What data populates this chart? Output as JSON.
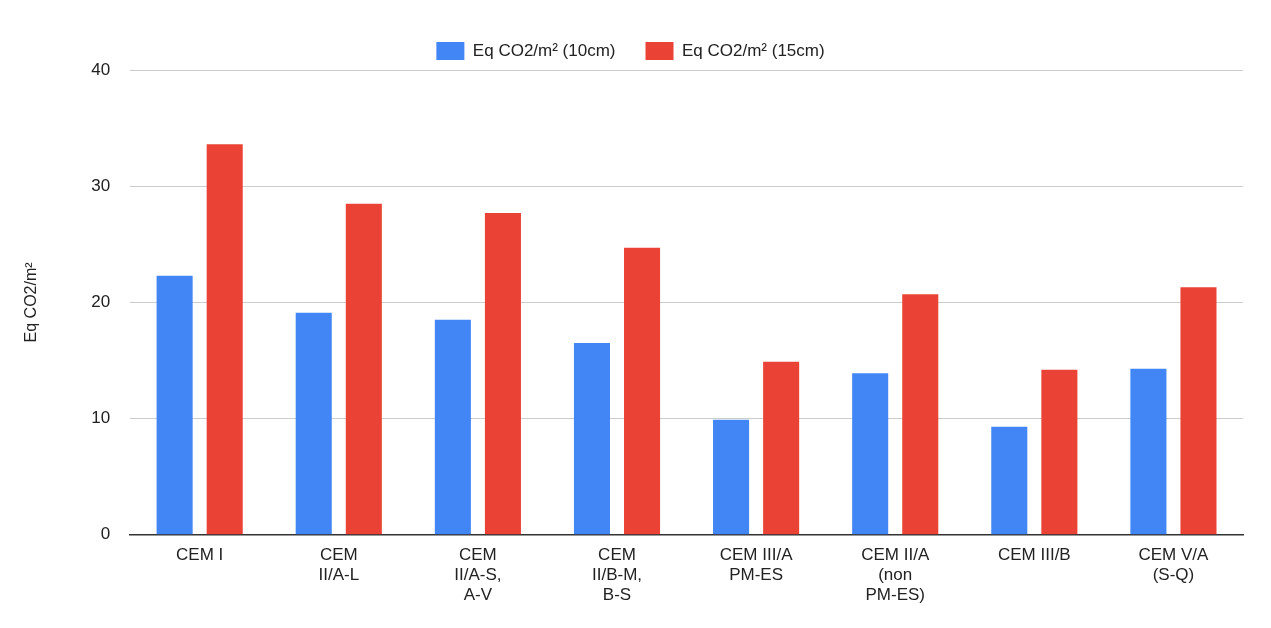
{
  "chart_data": {
    "type": "bar",
    "ylabel": "Eq CO2/m²",
    "categories": [
      "CEM I",
      "CEM II/A-L",
      "CEM II/A-S, A-V",
      "CEM II/B-M, B-S",
      "CEM III/A PM-ES",
      "CEM II/A (non PM-ES)",
      "CEM III/B",
      "CEM V/A (S-Q)"
    ],
    "series": [
      {
        "name": "Eq CO2/m² (10cm)",
        "color": "#4285f4",
        "values": [
          22.3,
          19.1,
          18.5,
          16.5,
          9.9,
          13.9,
          9.3,
          14.3
        ]
      },
      {
        "name": "Eq CO2/m² (15cm)",
        "color": "#ea4335",
        "values": [
          33.6,
          28.5,
          27.7,
          24.7,
          14.9,
          20.7,
          14.2,
          21.3
        ]
      }
    ],
    "ylim": [
      0,
      40
    ],
    "yticks": [
      0,
      10,
      20,
      30,
      40
    ],
    "grid": "y",
    "legend": "top"
  }
}
